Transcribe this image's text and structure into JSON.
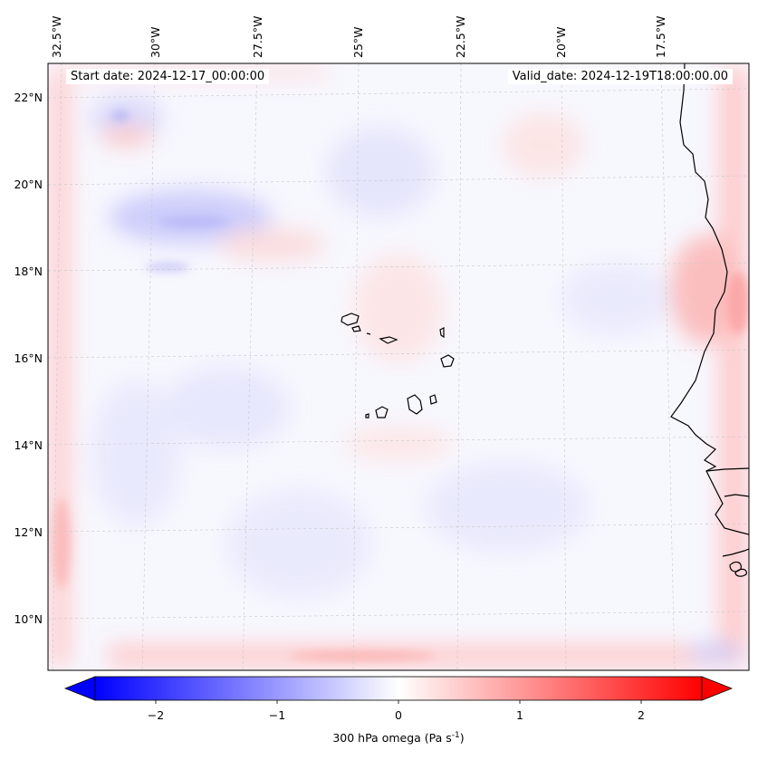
{
  "map": {
    "variable": "300 hPa omega",
    "units": "Pa s",
    "units_exponent": "-1",
    "start_date_label": "Start date: 2024-12-17_00:00:00",
    "valid_date_label": "Valid_date: 2024-12-19T18:00:00.00",
    "lon_labels": [
      "32.5°W",
      "30°W",
      "27.5°W",
      "25°W",
      "22.5°W",
      "20°W",
      "17.5°W"
    ],
    "lat_labels": [
      "22°N",
      "20°N",
      "18°N",
      "16°N",
      "14°N",
      "12°N",
      "10°N"
    ],
    "colorbar": {
      "colormap": "bwr",
      "vmin": -2.5,
      "vmax": 2.5,
      "extend": "both",
      "ticks": [
        "−2",
        "−1",
        "0",
        "1",
        "2"
      ],
      "colors": {
        "negative": "#0000ff",
        "neutral": "#ffffff",
        "positive": "#ff0000"
      }
    },
    "features": [
      "Cape Verde islands",
      "West African coastline"
    ]
  }
}
